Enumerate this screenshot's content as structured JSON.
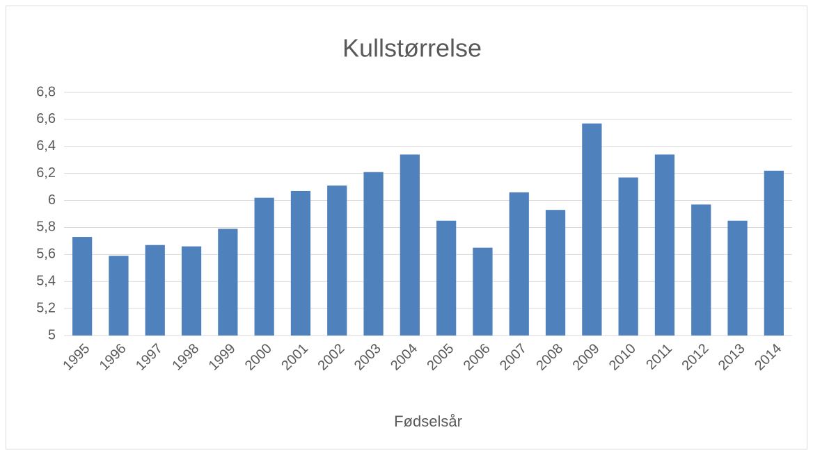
{
  "chart_data": {
    "type": "bar",
    "title": "Kullstørrelse",
    "x_label": "Fødselsår",
    "categories": [
      "1995",
      "1996",
      "1997",
      "1998",
      "1999",
      "2000",
      "2001",
      "2002",
      "2003",
      "2004",
      "2005",
      "2006",
      "2007",
      "2008",
      "2009",
      "2010",
      "2011",
      "2012",
      "2013",
      "2014"
    ],
    "values": [
      5.73,
      5.59,
      5.67,
      5.66,
      5.79,
      6.02,
      6.07,
      6.11,
      6.21,
      6.34,
      5.85,
      5.65,
      6.06,
      5.93,
      6.57,
      6.17,
      6.34,
      5.97,
      5.85,
      6.22
    ],
    "color": "#4f81bd",
    "ylim": [
      5,
      6.8
    ],
    "yticks": [
      5,
      {
        "value": 5.2,
        "label": "5,2"
      },
      {
        "value": 5.4,
        "label": "5,4"
      },
      {
        "value": 5.6,
        "label": "5,6"
      },
      {
        "value": 5.8,
        "label": "5,8"
      },
      6,
      {
        "value": 6.2,
        "label": "6,2"
      },
      {
        "value": 6.4,
        "label": "6,4"
      },
      {
        "value": 6.6,
        "label": "6,6"
      },
      {
        "value": 6.8,
        "label": "6,8"
      }
    ],
    "grid": true
  }
}
